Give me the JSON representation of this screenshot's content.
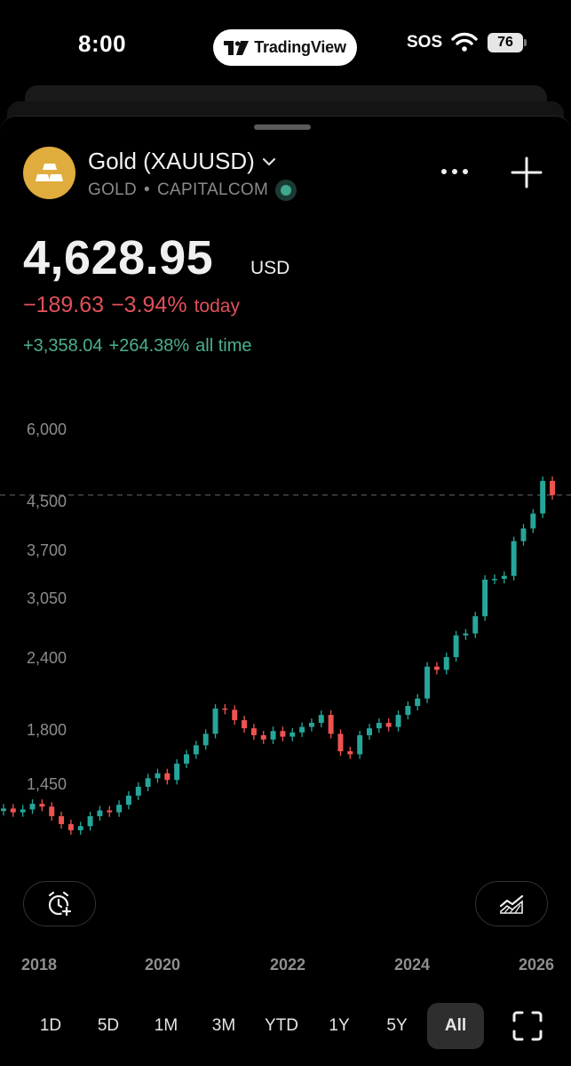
{
  "status_bar": {
    "time": "8:00",
    "app_pill": "TradingView",
    "sos": "SOS",
    "battery": "76"
  },
  "header": {
    "title": "Gold (XAUUSD)",
    "symbol": "GOLD",
    "separator": "•",
    "exchange": "CAPITALCOM"
  },
  "quote": {
    "price": "4,628.95",
    "currency": "USD",
    "change_today_abs": "−189.63",
    "change_today_pct": "−3.94%",
    "today_label": "today",
    "change_all_abs": "+3,358.04",
    "change_all_pct": "+264.38%",
    "all_label": "all time"
  },
  "chart_data": {
    "type": "candlestick",
    "x_labels": [
      "2018",
      "2020",
      "2022",
      "2024",
      "2026"
    ],
    "y_labels": [
      "6,000",
      "4,500",
      "3,700",
      "3,050",
      "2,400",
      "1,800",
      "1,450"
    ],
    "y_scale": "log",
    "last_price": 4628.95,
    "last_price_line": "dashed",
    "up_color": "#26a69a",
    "down_color": "#ef5350",
    "closes": [
      1320,
      1300,
      1315,
      1345,
      1330,
      1280,
      1240,
      1210,
      1230,
      1280,
      1310,
      1300,
      1340,
      1390,
      1440,
      1490,
      1520,
      1480,
      1580,
      1640,
      1700,
      1780,
      1970,
      1960,
      1880,
      1820,
      1770,
      1740,
      1800,
      1760,
      1790,
      1830,
      1860,
      1920,
      1780,
      1660,
      1640,
      1770,
      1820,
      1860,
      1830,
      1920,
      1990,
      2050,
      2330,
      2300,
      2420,
      2640,
      2660,
      2850,
      3300,
      3310,
      3350,
      3850,
      4050,
      4300,
      4900,
      4628.95
    ]
  },
  "controls": {
    "range_tabs": [
      "1D",
      "5D",
      "1M",
      "3M",
      "YTD",
      "1Y",
      "5Y",
      "All"
    ],
    "active_range": "All"
  },
  "colors": {
    "background": "#000000",
    "gold_logo": "#e1ac3e",
    "negative": "#e0505a",
    "positive": "#4caf90",
    "active_tab": "#2e2e2e"
  },
  "icons": [
    "tradingview-logo",
    "wifi-icon",
    "battery-icon",
    "gold-bars-icon",
    "chevron-down-icon",
    "more-icon",
    "plus-icon",
    "alarm-add-icon",
    "indicators-icon",
    "fullscreen-icon"
  ]
}
